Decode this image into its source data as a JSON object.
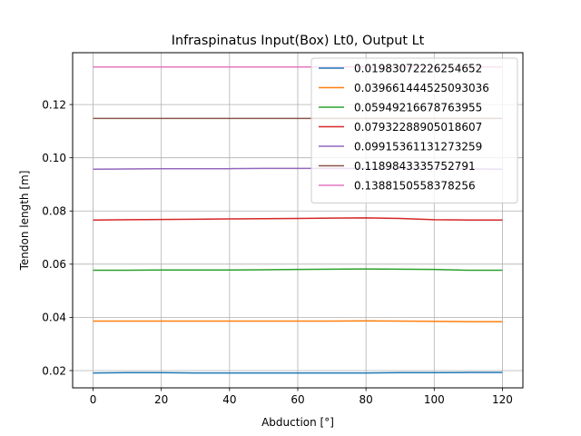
{
  "chart_data": {
    "type": "line",
    "title": "Infraspinatus Input(Box) Lt0, Output Lt",
    "xlabel": "Abduction [°]",
    "ylabel": "Tendon length [m]",
    "xlim": [
      -6,
      126
    ],
    "ylim": [
      0.0135,
      0.1395
    ],
    "xticks": [
      0,
      20,
      40,
      60,
      80,
      100,
      120
    ],
    "xtick_labels": [
      "0",
      "20",
      "40",
      "60",
      "80",
      "100",
      "120"
    ],
    "yticks": [
      0.02,
      0.04,
      0.06,
      0.08,
      0.1,
      0.12
    ],
    "ytick_labels": [
      "0.02",
      "0.04",
      "0.06",
      "0.08",
      "0.10",
      "0.12"
    ],
    "grid": true,
    "legend": "top-right",
    "x": [
      0,
      10,
      20,
      30,
      40,
      50,
      60,
      70,
      80,
      90,
      100,
      110,
      120
    ],
    "series": [
      {
        "name": "0.01983072226254652",
        "color": "#1f77b4",
        "values": [
          0.0191,
          0.0192,
          0.0192,
          0.0191,
          0.0191,
          0.0191,
          0.0191,
          0.0191,
          0.0191,
          0.0192,
          0.0192,
          0.0193,
          0.0193
        ]
      },
      {
        "name": "0.039661444525093036",
        "color": "#ff7f0e",
        "values": [
          0.0386,
          0.0386,
          0.0386,
          0.0386,
          0.0386,
          0.0386,
          0.0386,
          0.0386,
          0.0387,
          0.0386,
          0.0385,
          0.0384,
          0.0384
        ]
      },
      {
        "name": "0.05949216678763955",
        "color": "#2ca02c",
        "values": [
          0.0577,
          0.0577,
          0.0578,
          0.0578,
          0.0578,
          0.0579,
          0.058,
          0.0581,
          0.0582,
          0.0581,
          0.058,
          0.0577,
          0.0577
        ]
      },
      {
        "name": "0.07932288905018607",
        "color": "#d62728",
        "values": [
          0.0766,
          0.0767,
          0.0768,
          0.0769,
          0.077,
          0.0771,
          0.0772,
          0.0773,
          0.0774,
          0.0772,
          0.0767,
          0.0766,
          0.0766
        ]
      },
      {
        "name": "0.09915361131273259",
        "color": "#9467bd",
        "values": [
          0.0957,
          0.0958,
          0.0959,
          0.0959,
          0.0959,
          0.096,
          0.096,
          0.096,
          0.096,
          0.096,
          0.0959,
          0.0958,
          0.0957
        ]
      },
      {
        "name": "0.1189843335752791",
        "color": "#8c564b",
        "values": [
          0.1148,
          0.1148,
          0.1148,
          0.1148,
          0.1148,
          0.1148,
          0.1148,
          0.1148,
          0.1148,
          0.1148,
          0.1148,
          0.1148,
          0.1148
        ]
      },
      {
        "name": "0.1388150558378256",
        "color": "#e377c2",
        "values": [
          0.1341,
          0.1341,
          0.1341,
          0.1341,
          0.1341,
          0.1341,
          0.1341,
          0.1341,
          0.1341,
          0.1341,
          0.1341,
          0.1341,
          0.1341
        ]
      }
    ]
  }
}
